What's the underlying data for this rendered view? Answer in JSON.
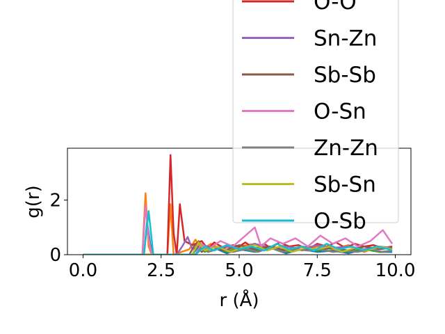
{
  "chart_data": {
    "type": "line",
    "title": "",
    "xlabel": "r (Å)",
    "ylabel": "g(r)",
    "xlim": [
      -0.5,
      10.5
    ],
    "ylim": [
      0,
      3.9
    ],
    "xticks": [
      0.0,
      2.5,
      5.0,
      7.5,
      10.0
    ],
    "xtick_labels": [
      "0.0",
      "2.5",
      "5.0",
      "7.5",
      "10.0"
    ],
    "yticks": [
      0,
      2
    ],
    "ytick_labels": [
      "0",
      "2"
    ],
    "grid": false,
    "legend_placement": "upper-right, overflowing above the axes",
    "series": [
      {
        "name": "",
        "color": "#1f77b4",
        "x": [
          0,
          1.95,
          2.05,
          2.15,
          2.25,
          3.5,
          3.7,
          4.0,
          4.3,
          4.6,
          5.0,
          5.5,
          6.0,
          6.5,
          7.0,
          7.5,
          8.0,
          8.5,
          9.0,
          9.5,
          9.9
        ],
        "y": [
          0,
          0,
          1.2,
          0.4,
          0,
          0,
          0.3,
          0.1,
          0.2,
          0.05,
          0.2,
          0.1,
          0.25,
          0.05,
          0.2,
          0.1,
          0.15,
          0.05,
          0.2,
          0.1,
          0.1
        ]
      },
      {
        "name": "",
        "color": "#ff7f0e",
        "x": [
          0,
          1.9,
          2.0,
          2.1,
          2.2,
          2.7,
          2.8,
          2.9,
          3.4,
          3.6,
          3.8,
          4.1,
          4.5,
          5.0,
          5.5,
          6.0,
          6.5,
          7.0,
          7.5,
          8.0,
          8.5,
          9.0,
          9.5,
          9.9
        ],
        "y": [
          0,
          0,
          2.25,
          0.3,
          0,
          0,
          1.85,
          0,
          0.2,
          0.55,
          0.2,
          0.4,
          0.15,
          0.3,
          0.4,
          0.2,
          0.35,
          0.15,
          0.3,
          0.2,
          0.35,
          0.1,
          0.3,
          0.2
        ]
      },
      {
        "name": "",
        "color": "#2ca02c",
        "x": [
          0,
          3.5,
          3.7,
          3.9,
          4.2,
          4.6,
          5.0,
          5.5,
          6.0,
          6.5,
          7.0,
          7.5,
          8.0,
          8.5,
          9.0,
          9.5,
          9.9
        ],
        "y": [
          0,
          0,
          0.5,
          0.1,
          0.3,
          0.1,
          0.25,
          0.15,
          0.3,
          0.1,
          0.2,
          0.15,
          0.25,
          0.1,
          0.2,
          0.1,
          0.15
        ]
      },
      {
        "name": "O-O",
        "color": "#d62728",
        "x": [
          0,
          2.7,
          2.8,
          2.9,
          3.0,
          3.1,
          3.25,
          3.5,
          3.8,
          4.0,
          4.2,
          4.5,
          4.8,
          5.0,
          5.2,
          5.5,
          5.8,
          6.0,
          6.3,
          6.6,
          6.9,
          7.2,
          7.5,
          7.8,
          8.1,
          8.4,
          8.7,
          9.0,
          9.3,
          9.6,
          9.9
        ],
        "y": [
          0,
          0,
          3.65,
          0.8,
          0,
          1.85,
          0.5,
          0.35,
          0.5,
          0.2,
          0.45,
          0.25,
          0.35,
          0.3,
          0.45,
          0.2,
          0.4,
          0.25,
          0.45,
          0.3,
          0.35,
          0.2,
          0.4,
          0.3,
          0.45,
          0.25,
          0.4,
          0.3,
          0.35,
          0.25,
          0.3
        ]
      },
      {
        "name": "Sn-Zn",
        "color": "#9467bd",
        "x": [
          0,
          3.0,
          3.2,
          3.35,
          3.5,
          3.8,
          4.2,
          4.6,
          5.0,
          5.5,
          6.0,
          6.5,
          7.0,
          7.5,
          8.0,
          8.5,
          9.0,
          9.5,
          9.9
        ],
        "y": [
          0,
          0,
          0.35,
          0.65,
          0.2,
          0.35,
          0.25,
          0.3,
          0.2,
          0.4,
          0.25,
          0.3,
          0.2,
          0.35,
          0.25,
          0.3,
          0.2,
          0.3,
          0.25
        ]
      },
      {
        "name": "Sb-Sb",
        "color": "#8c564b",
        "x": [
          0,
          3.4,
          3.6,
          3.8,
          4.1,
          4.5,
          5.0,
          5.5,
          6.0,
          6.5,
          7.0,
          7.5,
          8.0,
          8.5,
          9.0,
          9.5,
          9.9
        ],
        "y": [
          0,
          0,
          0.4,
          0.1,
          0.3,
          0.15,
          0.35,
          0.2,
          0.3,
          0.15,
          0.3,
          0.2,
          0.25,
          0.15,
          0.3,
          0.2,
          0.25
        ]
      },
      {
        "name": "O-Sn",
        "color": "#e377c2",
        "x": [
          0,
          1.9,
          2.0,
          2.1,
          2.2,
          3.6,
          3.8,
          4.0,
          4.4,
          4.8,
          5.2,
          5.5,
          5.7,
          6.0,
          6.4,
          6.8,
          7.2,
          7.6,
          8.0,
          8.4,
          8.8,
          9.2,
          9.6,
          9.9
        ],
        "y": [
          0,
          0,
          1.8,
          0.6,
          0,
          0,
          0.4,
          0.2,
          0.5,
          0.3,
          0.7,
          1.0,
          0.3,
          0.6,
          0.4,
          0.6,
          0.3,
          0.7,
          0.4,
          0.6,
          0.3,
          0.5,
          0.9,
          0.4
        ]
      },
      {
        "name": "Zn-Zn",
        "color": "#7f7f7f",
        "x": [
          0,
          3.6,
          3.8,
          4.0,
          4.4,
          4.8,
          5.2,
          5.6,
          6.0,
          6.4,
          6.8,
          7.2,
          7.6,
          8.0,
          8.4,
          8.8,
          9.2,
          9.6,
          9.9
        ],
        "y": [
          0,
          0,
          0.3,
          0.1,
          0.25,
          0.1,
          0.2,
          0.1,
          0.25,
          0.1,
          0.2,
          0.15,
          0.2,
          0.1,
          0.15,
          0.1,
          0.2,
          0.1,
          0.15
        ]
      },
      {
        "name": "Sb-Sn",
        "color": "#bcbd22",
        "x": [
          0,
          3.5,
          3.7,
          3.9,
          4.3,
          4.7,
          5.1,
          5.5,
          5.9,
          6.3,
          6.7,
          7.1,
          7.5,
          7.9,
          8.3,
          8.7,
          9.1,
          9.5,
          9.9
        ],
        "y": [
          0,
          0,
          0.45,
          0.15,
          0.3,
          0.1,
          0.25,
          0.35,
          0.15,
          0.3,
          0.1,
          0.25,
          0.2,
          0.3,
          0.1,
          0.25,
          0.15,
          0.3,
          0.2
        ]
      },
      {
        "name": "O-Sb",
        "color": "#17becf",
        "x": [
          0,
          1.95,
          2.1,
          2.25,
          3.6,
          3.9,
          4.2,
          4.6,
          5.0,
          5.4,
          5.8,
          6.2,
          6.6,
          7.0,
          7.4,
          7.8,
          8.2,
          8.6,
          9.0,
          9.4,
          9.8,
          9.9
        ],
        "y": [
          0,
          0,
          1.6,
          0,
          0,
          0.3,
          0.15,
          0.35,
          0.2,
          0.3,
          0.15,
          0.4,
          0.2,
          0.3,
          0.15,
          0.4,
          0.2,
          0.3,
          0.15,
          0.3,
          0.2,
          0.15
        ]
      }
    ]
  }
}
